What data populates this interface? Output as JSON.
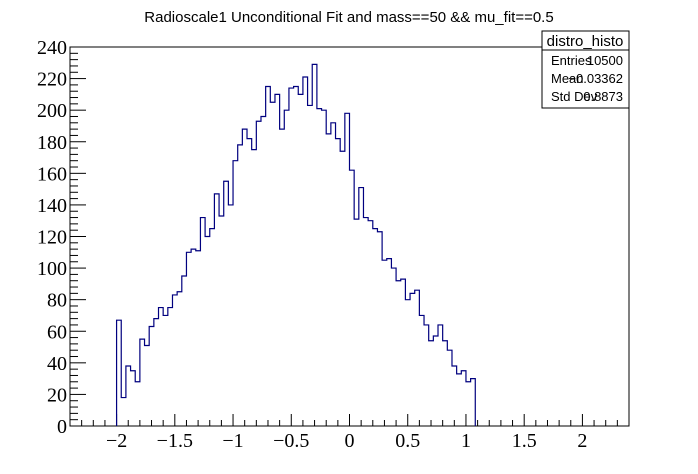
{
  "chart_data": {
    "type": "bar",
    "title": "Radioscale1 Unconditional Fit and mass==50 && mu_fit==0.5",
    "xlabel": "",
    "ylabel": "",
    "xlim": [
      -2.4,
      2.4
    ],
    "ylim": [
      0,
      240
    ],
    "bin_width": 0.04,
    "x_start": -2.0,
    "line_color": "#00007f",
    "x_ticks": [
      -2,
      -1.5,
      -1,
      -0.5,
      0,
      0.5,
      1,
      1.5,
      2
    ],
    "x_tick_labels": [
      "−2",
      "−1.5",
      "−1",
      "−0.5",
      "0",
      "0.5",
      "1",
      "1.5",
      "2"
    ],
    "y_ticks": [
      0,
      20,
      40,
      60,
      80,
      100,
      120,
      140,
      160,
      180,
      200,
      220,
      240
    ],
    "y_tick_labels": [
      "0",
      "20",
      "40",
      "60",
      "80",
      "100",
      "120",
      "140",
      "160",
      "180",
      "200",
      "220",
      "240"
    ],
    "values": [
      67,
      18,
      38,
      35,
      28,
      55,
      51,
      63,
      68,
      75,
      70,
      75,
      83,
      85,
      95,
      110,
      112,
      111,
      132,
      120,
      125,
      147,
      133,
      155,
      140,
      168,
      178,
      188,
      182,
      175,
      193,
      196,
      215,
      205,
      210,
      188,
      200,
      214,
      215,
      210,
      221,
      203,
      229,
      201,
      200,
      185,
      192,
      182,
      174,
      198,
      162,
      131,
      151,
      132,
      130,
      125,
      123,
      105,
      106,
      100,
      92,
      93,
      80,
      84,
      86,
      70,
      64,
      54,
      57,
      64,
      54,
      48,
      38,
      33,
      35,
      28,
      30
    ]
  },
  "stats_box": {
    "title": "distro_histo",
    "rows": [
      {
        "label": "Entries",
        "value": "10500"
      },
      {
        "label": "Mean",
        "value": "−0.03362"
      },
      {
        "label": "Std Dev",
        "value": "0.8873"
      }
    ]
  }
}
